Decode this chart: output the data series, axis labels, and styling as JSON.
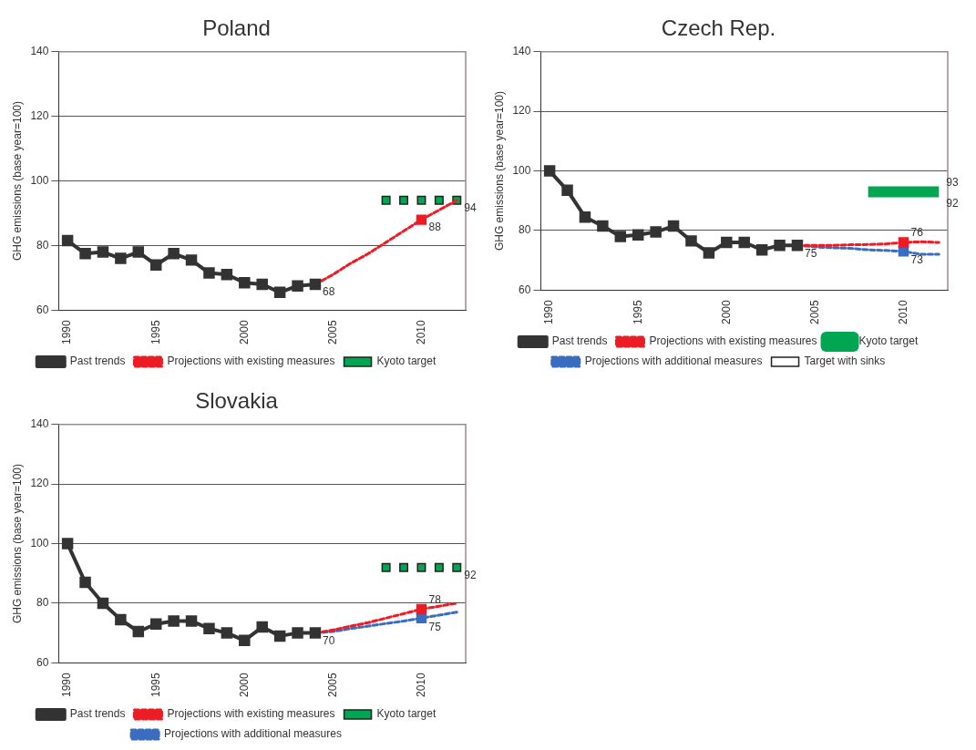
{
  "chart_data": [
    {
      "type": "line",
      "title": "Poland",
      "ylabel": "GHG emissions (base year=100)",
      "xlim": [
        1989.5,
        2012.5
      ],
      "xticks": [
        1990,
        1995,
        2000,
        2005,
        2010
      ],
      "ylim": [
        60,
        140
      ],
      "yticks": [
        60,
        80,
        100,
        120,
        140
      ],
      "grid": "y",
      "legend": "bottom",
      "series": [
        {
          "name": "Past trends",
          "color": "#333333",
          "marker": "square",
          "line_style": "solid",
          "x": [
            1990,
            1991,
            1992,
            1993,
            1994,
            1995,
            1996,
            1997,
            1998,
            1999,
            2000,
            2001,
            2002,
            2003,
            2004
          ],
          "values": [
            81.5,
            77.5,
            78,
            76,
            78,
            74,
            77.5,
            75.5,
            71.5,
            71,
            68.5,
            68,
            65.5,
            67.5,
            68
          ]
        },
        {
          "name": "Projections with existing measures",
          "type": "line",
          "color": "#ed1c24",
          "marker": "none",
          "line_style": "dashed",
          "x": [
            2004,
            2005,
            2006,
            2007,
            2008,
            2009,
            2010,
            2011,
            2012
          ],
          "values": [
            68,
            71,
            74.5,
            77.5,
            81,
            84.5,
            88,
            91,
            94
          ]
        },
        {
          "type": "scatter",
          "color": "#ed1c24",
          "marker": "square",
          "x": [
            2010
          ],
          "values": [
            88
          ]
        },
        {
          "name": "Kyoto target",
          "type": "scatter",
          "color": "#00a651",
          "marker": "square",
          "x": [
            2008,
            2009,
            2010,
            2011,
            2012
          ],
          "values": [
            94,
            94,
            94,
            94,
            94
          ]
        }
      ],
      "annotations": [
        {
          "text": "68",
          "x": 2004,
          "y": 68
        },
        {
          "text": "88",
          "x": 2010,
          "y": 88
        },
        {
          "text": "94",
          "x": 2012,
          "y": 94
        }
      ]
    },
    {
      "type": "line",
      "title": "Czech Rep.",
      "ylabel": "GHG emissions (base year=100)",
      "xlim": [
        1989.5,
        2012.5
      ],
      "xticks": [
        1990,
        1995,
        2000,
        2005,
        2010
      ],
      "ylim": [
        60,
        140
      ],
      "yticks": [
        60,
        80,
        100,
        120,
        140
      ],
      "grid": "y",
      "legend": "bottom",
      "series": [
        {
          "name": "Past trends",
          "color": "#333333",
          "marker": "square",
          "line_style": "solid",
          "x": [
            1990,
            1991,
            1992,
            1993,
            1994,
            1995,
            1996,
            1997,
            1998,
            1999,
            2000,
            2001,
            2002,
            2003,
            2004
          ],
          "values": [
            100,
            93.5,
            84.5,
            81.5,
            78,
            78.5,
            79.5,
            81.5,
            76.5,
            72.5,
            76,
            76,
            73.5,
            75,
            75
          ]
        },
        {
          "name": "Projections with existing measures",
          "type": "line",
          "color": "#ed1c24",
          "marker": "none",
          "line_style": "dashed",
          "x": [
            2004,
            2005,
            2006,
            2007,
            2008,
            2009,
            2010,
            2011,
            2012
          ],
          "values": [
            75,
            75,
            75,
            75.2,
            75.3,
            75.5,
            76,
            76.2,
            76
          ]
        },
        {
          "name": "Kyoto target",
          "type": "line",
          "color": "#00a651",
          "marker": "none",
          "line_style": "solid",
          "x": [
            2008,
            2009,
            2010,
            2011,
            2012
          ],
          "values": [
            93,
            93,
            93,
            93,
            93
          ]
        },
        {
          "name": "Projections with additional measures",
          "type": "line",
          "color": "#3a6dbf",
          "marker": "none",
          "line_style": "dashed",
          "x": [
            2004,
            2005,
            2006,
            2007,
            2008,
            2009,
            2010,
            2011,
            2012
          ],
          "values": [
            75,
            74.5,
            74.2,
            74,
            73.5,
            73.3,
            73,
            72,
            72
          ]
        },
        {
          "name": "Target with sinks",
          "type": "scatter",
          "color": "#ffffff",
          "marker": "square"
        },
        {
          "type": "scatter",
          "color": "#ed1c24",
          "marker": "square",
          "x": [
            2010
          ],
          "values": [
            76
          ]
        },
        {
          "type": "scatter",
          "color": "#3a6dbf",
          "marker": "square",
          "x": [
            2010
          ],
          "values": [
            73
          ]
        }
      ],
      "annotations": [
        {
          "text": "75",
          "x": 2004,
          "y": 75
        },
        {
          "text": "76",
          "x": 2010,
          "y": 76
        },
        {
          "text": "73",
          "x": 2010,
          "y": 73
        },
        {
          "text": "93",
          "x": 2012,
          "y": 93
        },
        {
          "text": "92",
          "x": 2012,
          "y": 92
        }
      ]
    },
    {
      "type": "line",
      "title": "Slovakia",
      "ylabel": "GHG emissions (base year=100)",
      "xlim": [
        1989.5,
        2012.5
      ],
      "xticks": [
        1990,
        1995,
        2000,
        2005,
        2010
      ],
      "ylim": [
        60,
        140
      ],
      "yticks": [
        60,
        80,
        100,
        120,
        140
      ],
      "grid": "y",
      "legend": "bottom",
      "series": [
        {
          "name": "Past trends",
          "color": "#333333",
          "marker": "square",
          "line_style": "solid",
          "x": [
            1990,
            1991,
            1992,
            1993,
            1994,
            1995,
            1996,
            1997,
            1998,
            1999,
            2000,
            2001,
            2002,
            2003,
            2004
          ],
          "values": [
            100,
            87,
            80,
            74.5,
            70.5,
            73,
            74,
            74,
            71.5,
            70,
            67.5,
            72,
            69,
            70,
            70
          ]
        },
        {
          "name": "Projections with existing measures",
          "type": "line",
          "color": "#ed1c24",
          "marker": "none",
          "line_style": "dashed",
          "x": [
            2004,
            2005,
            2006,
            2007,
            2008,
            2009,
            2010,
            2011,
            2012
          ],
          "values": [
            70,
            71,
            72.3,
            73.5,
            75,
            76.5,
            78,
            79,
            80
          ]
        },
        {
          "name": "Kyoto target",
          "type": "scatter",
          "color": "#00a651",
          "marker": "square",
          "x": [
            2008,
            2009,
            2010,
            2011,
            2012
          ],
          "values": [
            92,
            92,
            92,
            92,
            92
          ]
        },
        {
          "name": "Projections with additional measures",
          "type": "line",
          "color": "#3a6dbf",
          "marker": "none",
          "line_style": "dashed",
          "x": [
            2004,
            2005,
            2006,
            2007,
            2008,
            2009,
            2010,
            2011,
            2012
          ],
          "values": [
            70,
            70.5,
            71.5,
            72.3,
            73.2,
            74,
            75,
            76,
            77
          ]
        },
        {
          "type": "scatter",
          "color": "#ed1c24",
          "marker": "square",
          "x": [
            2010
          ],
          "values": [
            78
          ]
        },
        {
          "type": "scatter",
          "color": "#3a6dbf",
          "marker": "square",
          "x": [
            2010
          ],
          "values": [
            75
          ]
        }
      ],
      "annotations": [
        {
          "text": "70",
          "x": 2004,
          "y": 70
        },
        {
          "text": "78",
          "x": 2010,
          "y": 78
        },
        {
          "text": "75",
          "x": 2010,
          "y": 75
        },
        {
          "text": "92",
          "x": 2012,
          "y": 92
        }
      ]
    }
  ]
}
